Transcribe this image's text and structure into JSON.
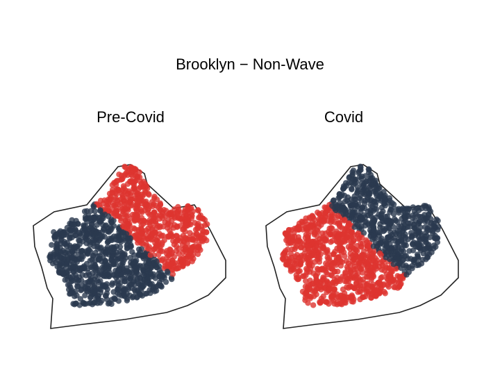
{
  "title": "Brooklyn − Non-Wave",
  "panels": [
    {
      "id": "pre",
      "title": "Pre-Covid",
      "cluster_a_color": "#2b3a4f",
      "cluster_b_color": "#dd3530",
      "split": "diagonal"
    },
    {
      "id": "covid",
      "title": "Covid",
      "cluster_a_color": "#2b3a4f",
      "cluster_b_color": "#dd3530",
      "split": "rotated"
    }
  ],
  "colors": {
    "dark": "#2b3a4f",
    "red": "#dd3530",
    "outline": "#222222"
  }
}
